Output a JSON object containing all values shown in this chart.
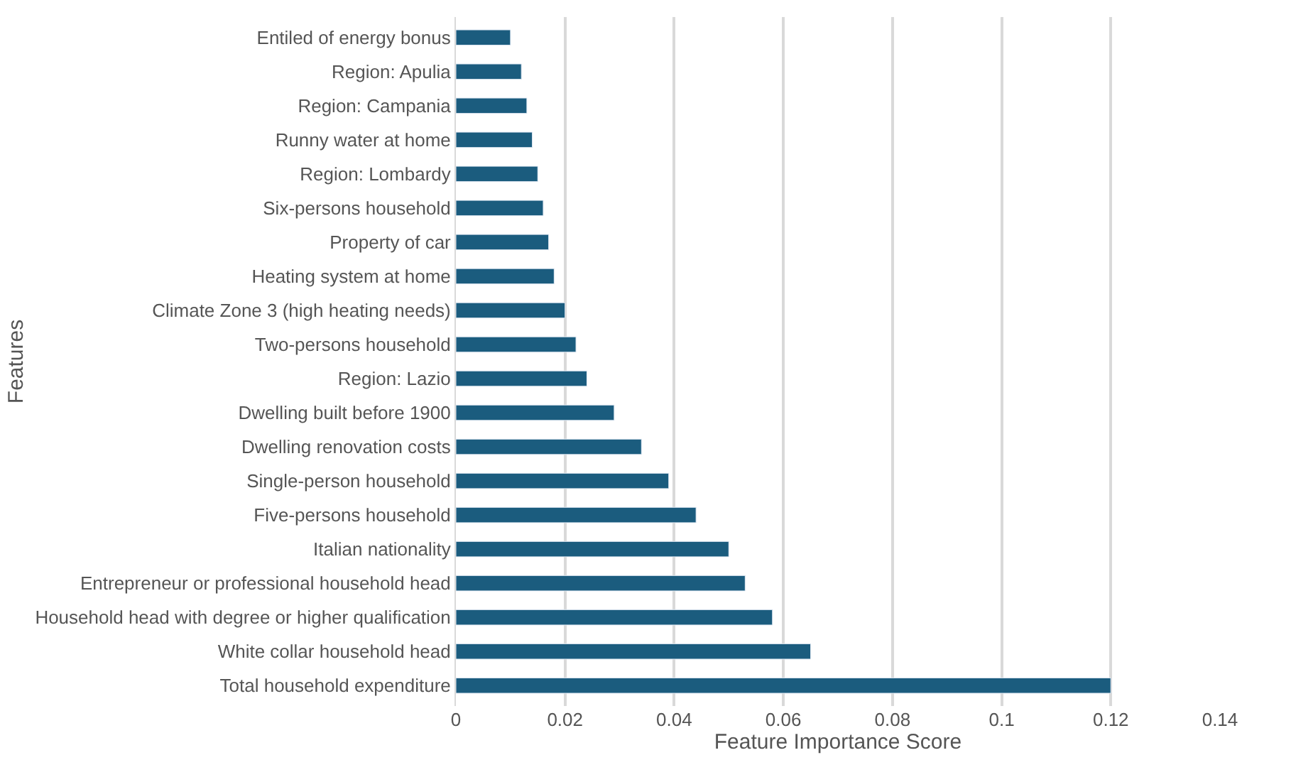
{
  "chart_data": {
    "type": "bar",
    "orientation": "horizontal",
    "xlabel": "Feature Importance Score",
    "ylabel": "Features",
    "categories": [
      "Entiled of energy bonus",
      "Region: Apulia",
      "Region: Campania",
      "Runny water at home",
      "Region: Lombardy",
      "Six-persons household",
      "Property of car",
      "Heating system at home",
      "Climate Zone 3 (high heating needs)",
      "Two-persons household",
      "Region: Lazio",
      "Dwelling built before 1900",
      "Dwelling renovation costs",
      "Single-person household",
      "Five-persons household",
      "Italian nationality",
      "Entrepreneur or professional household head",
      "Household head with degree or higher qualification",
      "White collar household head",
      "Total household expenditure"
    ],
    "values": [
      0.01,
      0.012,
      0.013,
      0.014,
      0.015,
      0.016,
      0.017,
      0.018,
      0.02,
      0.022,
      0.024,
      0.029,
      0.034,
      0.039,
      0.044,
      0.05,
      0.053,
      0.058,
      0.065,
      0.12
    ],
    "color": "#1b5c7e",
    "xlim": [
      0,
      0.14
    ],
    "xticks": [
      0,
      0.02,
      0.04,
      0.06,
      0.08,
      0.1,
      0.12,
      0.14
    ],
    "grid": "x"
  }
}
